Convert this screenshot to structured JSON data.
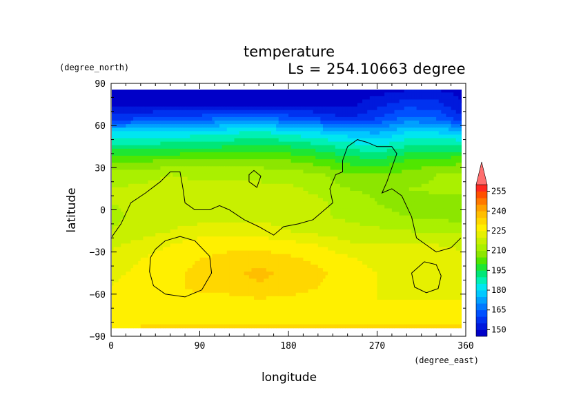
{
  "chart_data": {
    "type": "heatmap",
    "title": "temperature",
    "subtitle": "Ls = 254.10663 degree",
    "xlabel": "longitude",
    "ylabel": "latitude",
    "x_unit": "(degree_east)",
    "y_unit": "(degree_north)",
    "xlim": [
      0,
      360
    ],
    "ylim": [
      -90,
      90
    ],
    "x_ticks": [
      0,
      90,
      180,
      270,
      360
    ],
    "y_ticks": [
      90,
      60,
      30,
      0,
      -30,
      -60,
      -90
    ],
    "x_tick_labels": [
      "0",
      "90",
      "180",
      "270",
      "360"
    ],
    "y_tick_labels": [
      "90",
      "60",
      "30",
      "0",
      "−30",
      "−60",
      "−90"
    ],
    "grid": false,
    "lon": [
      0,
      30,
      60,
      90,
      120,
      150,
      180,
      210,
      240,
      270,
      300,
      330,
      355
    ],
    "lat": [
      85,
      75,
      65,
      55,
      45,
      35,
      25,
      15,
      5,
      -5,
      -15,
      -25,
      -35,
      -45,
      -55,
      -65,
      -75,
      -82
    ],
    "z": [
      [
        148,
        148,
        148,
        148,
        148,
        148,
        148,
        148,
        148,
        148,
        150,
        150,
        149
      ],
      [
        148,
        148,
        148,
        148,
        148,
        148,
        149,
        149,
        148,
        153,
        158,
        157,
        150
      ],
      [
        158,
        160,
        163,
        163,
        167,
        168,
        163,
        160,
        155,
        160,
        167,
        165,
        157
      ],
      [
        180,
        180,
        181,
        182,
        184,
        186,
        183,
        180,
        177,
        174,
        180,
        180,
        178
      ],
      [
        192,
        192,
        193,
        194,
        195,
        196,
        195,
        192,
        188,
        186,
        190,
        191,
        191
      ],
      [
        203,
        204,
        206,
        206,
        206,
        206,
        205,
        202,
        198,
        196,
        200,
        202,
        203
      ],
      [
        213,
        213,
        215,
        214,
        214,
        214,
        213,
        211,
        206,
        205,
        207,
        210,
        211
      ],
      [
        215,
        216,
        217,
        216,
        216,
        216,
        216,
        214,
        210,
        209,
        210,
        211,
        211
      ],
      [
        215,
        216,
        217,
        218,
        218,
        217,
        216,
        216,
        213,
        210,
        208,
        208,
        208
      ],
      [
        214,
        216,
        218,
        218,
        219,
        219,
        218,
        216,
        214,
        212,
        210,
        209,
        208
      ],
      [
        215,
        217,
        220,
        222,
        222,
        222,
        220,
        218,
        217,
        216,
        215,
        214,
        214
      ],
      [
        219,
        222,
        225,
        228,
        229,
        229,
        227,
        225,
        221,
        220,
        220,
        220,
        219
      ],
      [
        222,
        225,
        228,
        230,
        231,
        232,
        231,
        229,
        226,
        223,
        222,
        222,
        222
      ],
      [
        224,
        226,
        229,
        231,
        233,
        237,
        233,
        231,
        228,
        225,
        224,
        224,
        224
      ],
      [
        225,
        227,
        229,
        231,
        231,
        234,
        232,
        230,
        228,
        225,
        224,
        224,
        224
      ],
      [
        226,
        227,
        228,
        229,
        229,
        229,
        229,
        228,
        226,
        225,
        225,
        225,
        225
      ],
      [
        228,
        229,
        229,
        229,
        229,
        229,
        229,
        229,
        228,
        228,
        228,
        229,
        229
      ],
      [
        229,
        230,
        230,
        230,
        230,
        230,
        230,
        230,
        230,
        230,
        230,
        230,
        230
      ]
    ],
    "colorbar": {
      "levels": [
        145,
        150,
        155,
        160,
        165,
        170,
        175,
        180,
        185,
        190,
        195,
        200,
        205,
        210,
        215,
        220,
        225,
        230,
        235,
        240,
        245,
        250,
        255,
        260
      ],
      "labels": [
        "150",
        "165",
        "180",
        "195",
        "210",
        "225",
        "240",
        "255"
      ],
      "label_values": [
        150,
        165,
        180,
        195,
        210,
        225,
        240,
        255
      ],
      "colors": [
        "#0000c8",
        "#0019dc",
        "#0032f0",
        "#0050ff",
        "#0078ff",
        "#00a0ff",
        "#00c8ff",
        "#00e6f0",
        "#00f0b4",
        "#00e678",
        "#1ee632",
        "#50e600",
        "#8ce600",
        "#aaf000",
        "#c8f000",
        "#e6f000",
        "#fff000",
        "#ffd700",
        "#ffbe00",
        "#ffa000",
        "#ff7800",
        "#ff5000",
        "#ff2820"
      ],
      "extend_top_color": "#ff6e6e"
    },
    "contours": [
      {
        "name": "continent-boundary",
        "points": [
          [
            0,
            -20
          ],
          [
            10,
            -10
          ],
          [
            20,
            5
          ],
          [
            35,
            12
          ],
          [
            50,
            20
          ],
          [
            60,
            27
          ],
          [
            70,
            27
          ],
          [
            73,
            15
          ],
          [
            75,
            5
          ],
          [
            85,
            0
          ],
          [
            100,
            0
          ],
          [
            110,
            3
          ],
          [
            120,
            0
          ],
          [
            135,
            -7
          ],
          [
            150,
            -12
          ],
          [
            165,
            -18
          ],
          [
            175,
            -12
          ],
          [
            190,
            -10
          ],
          [
            205,
            -7
          ],
          [
            215,
            -1
          ],
          [
            225,
            5
          ],
          [
            222,
            15
          ],
          [
            228,
            25
          ],
          [
            235,
            27
          ],
          [
            235,
            35
          ],
          [
            240,
            45
          ],
          [
            250,
            50
          ],
          [
            260,
            48
          ],
          [
            270,
            45
          ],
          [
            285,
            45
          ],
          [
            290,
            40
          ],
          [
            285,
            30
          ],
          [
            280,
            20
          ],
          [
            275,
            12
          ],
          [
            285,
            15
          ],
          [
            295,
            10
          ],
          [
            305,
            -5
          ],
          [
            310,
            -20
          ],
          [
            320,
            -25
          ],
          [
            330,
            -30
          ],
          [
            345,
            -27
          ],
          [
            355,
            -20
          ]
        ]
      },
      {
        "name": "island",
        "points": [
          [
            140,
            20
          ],
          [
            148,
            16
          ],
          [
            152,
            24
          ],
          [
            145,
            28
          ],
          [
            140,
            25
          ],
          [
            140,
            20
          ]
        ]
      },
      {
        "name": "hellas-basin",
        "points": [
          [
            40,
            -34
          ],
          [
            45,
            -28
          ],
          [
            55,
            -22
          ],
          [
            70,
            -19
          ],
          [
            85,
            -22
          ],
          [
            100,
            -33
          ],
          [
            102,
            -45
          ],
          [
            92,
            -57
          ],
          [
            75,
            -62
          ],
          [
            55,
            -60
          ],
          [
            43,
            -54
          ],
          [
            39,
            -44
          ],
          [
            40,
            -34
          ]
        ]
      },
      {
        "name": "argyre-basin",
        "points": [
          [
            305,
            -45
          ],
          [
            318,
            -37
          ],
          [
            330,
            -39
          ],
          [
            335,
            -47
          ],
          [
            332,
            -56
          ],
          [
            320,
            -59
          ],
          [
            308,
            -55
          ],
          [
            305,
            -45
          ]
        ]
      }
    ]
  }
}
